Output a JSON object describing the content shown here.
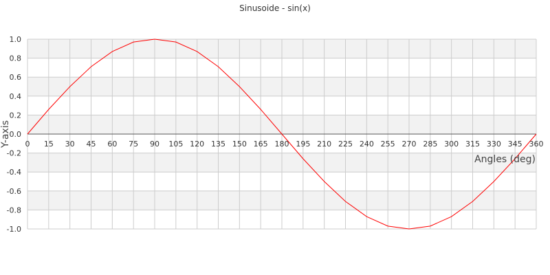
{
  "chart_data": {
    "type": "line",
    "title": "Sinusoide - sin(x)",
    "xlabel": "Angles (deg)",
    "ylabel": "Y-axis",
    "xlim": [
      0,
      360
    ],
    "ylim": [
      -1.0,
      1.0
    ],
    "x_ticks": [
      "0",
      "15",
      "30",
      "45",
      "60",
      "75",
      "90",
      "105",
      "120",
      "135",
      "150",
      "165",
      "180",
      "195",
      "210",
      "225",
      "240",
      "255",
      "270",
      "285",
      "300",
      "315",
      "330",
      "345",
      "360"
    ],
    "y_ticks": [
      "-1.0",
      "-0.8",
      "-0.6",
      "-0.4",
      "-0.2",
      "0.0",
      "0.2",
      "0.4",
      "0.6",
      "0.8",
      "1.0"
    ],
    "grid": true,
    "series": [
      {
        "color": "#ff0000",
        "x": [
          0,
          15,
          30,
          45,
          60,
          75,
          90,
          105,
          120,
          135,
          150,
          165,
          180,
          195,
          210,
          225,
          240,
          255,
          270,
          285,
          300,
          315,
          330,
          345,
          360
        ],
        "y": [
          0.0,
          0.26,
          0.5,
          0.71,
          0.87,
          0.97,
          1.0,
          0.97,
          0.87,
          0.71,
          0.5,
          0.26,
          0.0,
          -0.26,
          -0.5,
          -0.71,
          -0.87,
          -0.97,
          -1.0,
          -0.97,
          -0.87,
          -0.71,
          -0.5,
          -0.26,
          0.0
        ]
      }
    ],
    "colors": {
      "line": "#ff0000",
      "band": "#f2f2f2",
      "grid": "#cccccc",
      "zero_axis": "#555555"
    }
  }
}
